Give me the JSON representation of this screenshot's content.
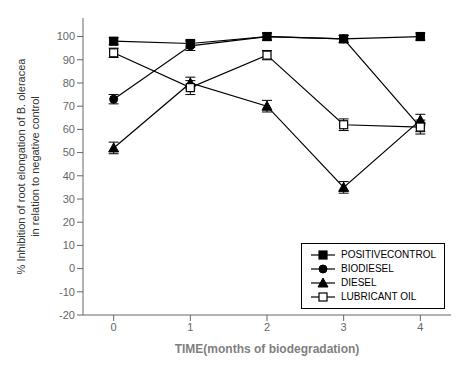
{
  "chart_data": {
    "type": "line",
    "xlabel": "TIME(months of biodegradation)",
    "ylabel": "% Inhibition of root elongation of B. oleracea\nin relation to negative control",
    "x": [
      0,
      1,
      2,
      3,
      4
    ],
    "xlim": [
      -0.4,
      4.4
    ],
    "xticks": [
      0,
      1,
      2,
      3,
      4
    ],
    "ylim": [
      -20,
      108
    ],
    "yticks": [
      -20,
      -10,
      0,
      10,
      20,
      30,
      40,
      50,
      60,
      70,
      80,
      90,
      100
    ],
    "grid": false,
    "legend": "lower right",
    "series": [
      {
        "name": "POSITIVECONTROL",
        "color": "#000000",
        "marker": "square",
        "line_style": "solid",
        "values": [
          98,
          97,
          100,
          99,
          100
        ],
        "errors": [
          1.5,
          1.5,
          1.5,
          1.5,
          1.5
        ]
      },
      {
        "name": "BIODIESEL",
        "color": "#000000",
        "marker": "circle",
        "line_style": "solid",
        "values": [
          73,
          96,
          100,
          99,
          61
        ],
        "errors": [
          2.0,
          2.0,
          1.5,
          1.5,
          2.0
        ]
      },
      {
        "name": "DIESEL",
        "color": "#000000",
        "marker": "triangle",
        "line_style": "solid",
        "values": [
          52,
          80,
          70,
          35,
          64
        ],
        "errors": [
          2.5,
          2.5,
          2.5,
          2.5,
          2.5
        ]
      },
      {
        "name": "LUBRICANT OIL",
        "color": "#000000",
        "marker": "open_square",
        "line_style": "solid",
        "values": [
          93,
          78,
          92,
          62,
          61
        ],
        "errors": [
          2.0,
          3.0,
          2.0,
          2.5,
          3.0
        ]
      }
    ]
  }
}
